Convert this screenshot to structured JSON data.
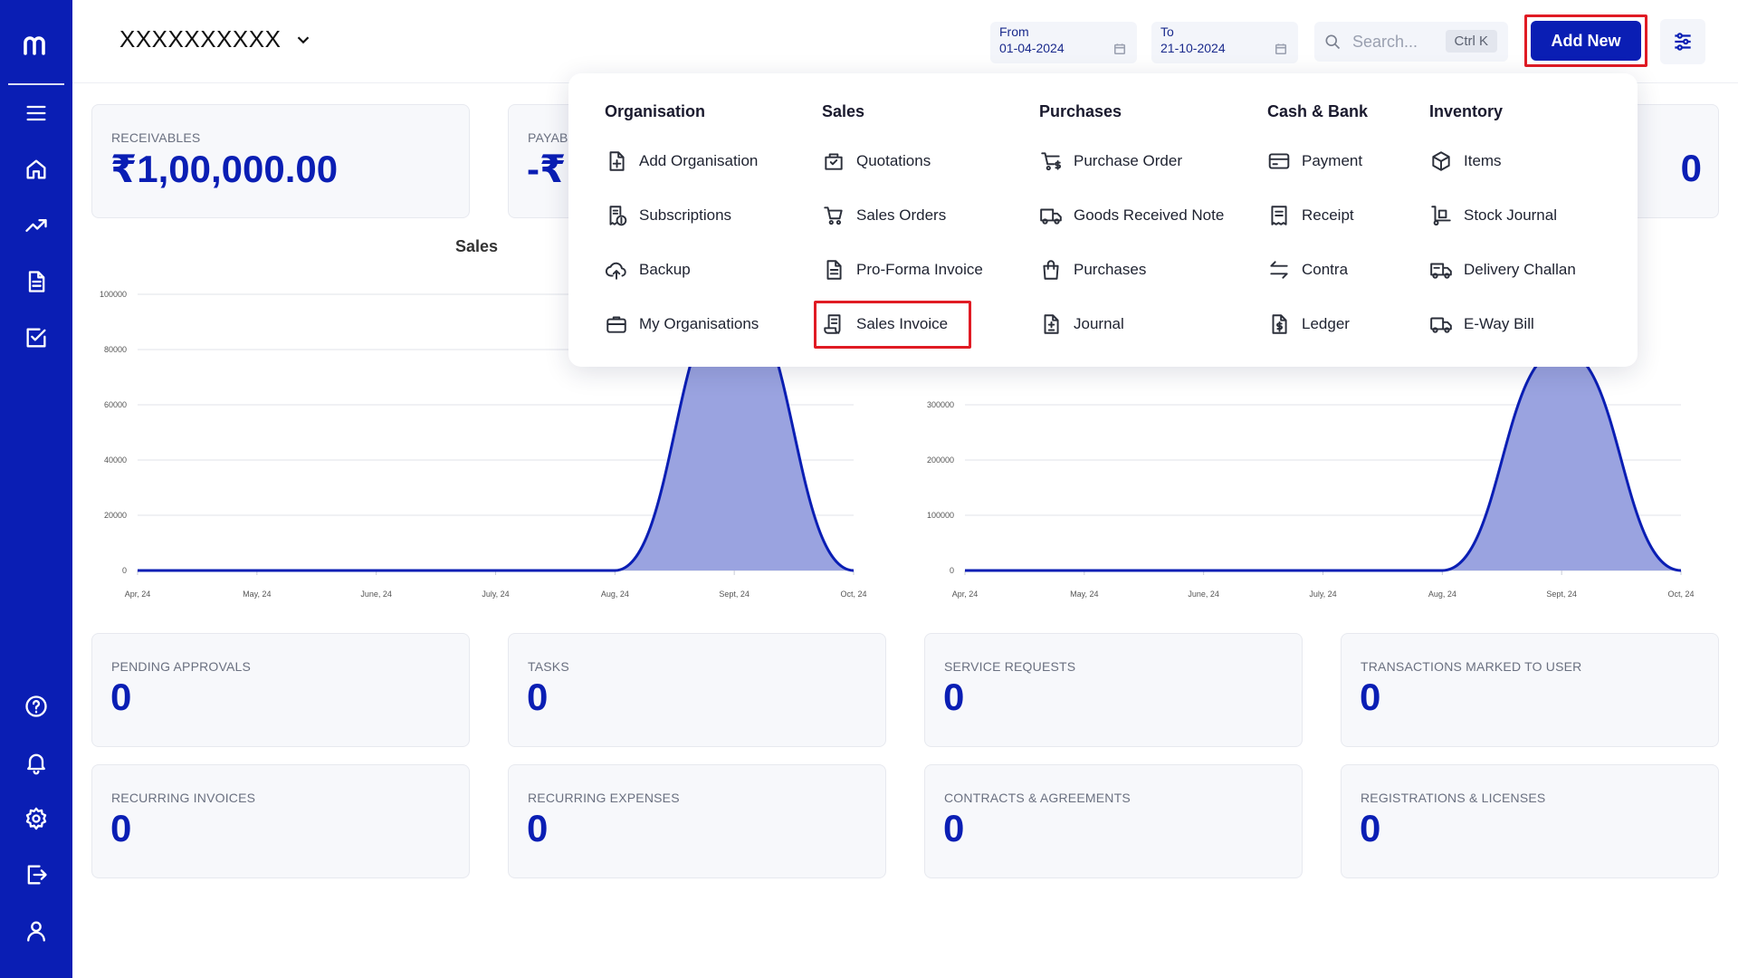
{
  "header": {
    "org_name": "XXXXXXXXXX",
    "from_label": "From",
    "from_value": "01-04-2024",
    "to_label": "To",
    "to_value": "21-10-2024",
    "search_placeholder": "Search...",
    "search_shortcut": "Ctrl K",
    "add_new_label": "Add New"
  },
  "top_cards": [
    {
      "label": "RECEIVABLES",
      "value": "₹1,00,000.00"
    },
    {
      "label": "PAYAB",
      "value": "-₹"
    },
    {
      "value": "0"
    }
  ],
  "charts": {
    "sales_title": "Sales"
  },
  "chart_data": [
    {
      "type": "area",
      "title": "Sales",
      "categories": [
        "Apr, 24",
        "May, 24",
        "June, 24",
        "July, 24",
        "Aug, 24",
        "Sept, 24",
        "Oct, 24"
      ],
      "values": [
        0,
        0,
        0,
        0,
        0,
        100000,
        0
      ],
      "yticks": [
        "0",
        "20000",
        "40000",
        "60000",
        "80000",
        "100000"
      ],
      "ylim": [
        0,
        100000
      ]
    },
    {
      "type": "area",
      "title": "",
      "categories": [
        "Apr, 24",
        "May, 24",
        "June, 24",
        "July, 24",
        "Aug, 24",
        "Sept, 24",
        "Oct, 24"
      ],
      "values": [
        0,
        0,
        0,
        0,
        0,
        400000,
        0
      ],
      "yticks": [
        "0",
        "100000",
        "200000",
        "300000"
      ],
      "ylim": [
        0,
        500000
      ]
    }
  ],
  "stat_cards": [
    {
      "label": "PENDING APPROVALS",
      "value": "0"
    },
    {
      "label": "TASKS",
      "value": "0"
    },
    {
      "label": "SERVICE REQUESTS",
      "value": "0"
    },
    {
      "label": "TRANSACTIONS MARKED TO USER",
      "value": "0"
    },
    {
      "label": "RECURRING INVOICES",
      "value": "0"
    },
    {
      "label": "RECURRING EXPENSES",
      "value": "0"
    },
    {
      "label": "CONTRACTS & AGREEMENTS",
      "value": "0"
    },
    {
      "label": "REGISTRATIONS & LICENSES",
      "value": "0"
    }
  ],
  "menu": {
    "organisation": {
      "title": "Organisation",
      "items": [
        "Add Organisation",
        "Subscriptions",
        "Backup",
        "My Organisations"
      ]
    },
    "sales": {
      "title": "Sales",
      "items": [
        "Quotations",
        "Sales Orders",
        "Pro-Forma Invoice",
        "Sales Invoice"
      ]
    },
    "purchases": {
      "title": "Purchases",
      "items": [
        "Purchase Order",
        "Goods Received Note",
        "Purchases",
        "Journal"
      ]
    },
    "cash_bank": {
      "title": "Cash & Bank",
      "items": [
        "Payment",
        "Receipt",
        "Contra",
        "Ledger"
      ]
    },
    "inventory": {
      "title": "Inventory",
      "items": [
        "Items",
        "Stock Journal",
        "Delivery Challan",
        "E-Way Bill"
      ]
    }
  },
  "colors": {
    "brand": "#0a1eb4",
    "area_fill": "#9aa3e0",
    "highlight": "#e01b24"
  }
}
